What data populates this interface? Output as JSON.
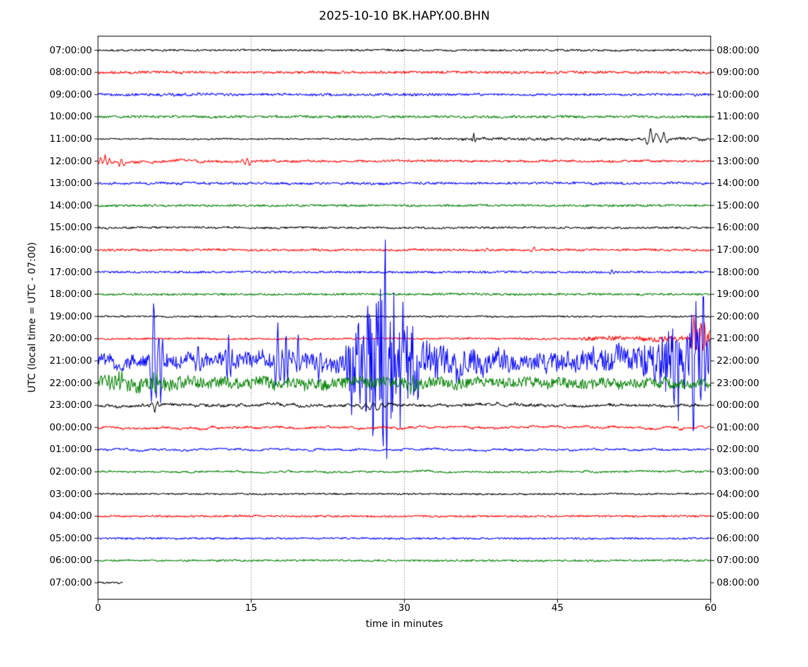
{
  "chart_data": {
    "type": "line",
    "subtype": "seismogram-dayplot",
    "title": "2025-10-10 BK.HAPY.00.BHN",
    "xlabel": "time in minutes",
    "ylabel": "UTC (local time = UTC - 07:00)",
    "x_range_minutes": [
      0,
      60
    ],
    "x_ticks": [
      0,
      15,
      30,
      45,
      60
    ],
    "gridline_minutes": [
      15,
      30,
      45
    ],
    "grid_style": "dotted-vertical",
    "trace_color_cycle": [
      "#000000",
      "#ff0000",
      "#0000ff",
      "#008000"
    ],
    "rows_note": "each row = one hour of data; left label = UTC start time, right label = UTC end time; hf/mf/lf are amplitude envelopes in px as [minute,amp] points or constants; spikes are transient events {t:minute, a:amp px, w:half-width min, c:cycles}",
    "rows": [
      {
        "utc_start": "07:00:00",
        "utc_end": "08:00:00",
        "color": "#000000",
        "hf": 1.3,
        "mf": 0.5,
        "lf": 0.4
      },
      {
        "utc_start": "08:00:00",
        "utc_end": "09:00:00",
        "color": "#ff0000",
        "hf": 1.8,
        "mf": 0.6,
        "lf": 0.5
      },
      {
        "utc_start": "09:00:00",
        "utc_end": "10:00:00",
        "color": "#0000ff",
        "hf": [
          [
            0,
            1.5
          ],
          [
            9,
            2.2
          ],
          [
            14,
            1.5
          ],
          [
            31,
            2.0
          ],
          [
            38,
            1.5
          ],
          [
            60,
            1.7
          ]
        ],
        "mf": 0.6,
        "lf": 0.5
      },
      {
        "utc_start": "10:00:00",
        "utc_end": "11:00:00",
        "color": "#008000",
        "hf": 1.7,
        "mf": 0.5,
        "lf": 0.4
      },
      {
        "utc_start": "11:00:00",
        "utc_end": "12:00:00",
        "color": "#000000",
        "hf": [
          [
            0,
            0.9
          ],
          [
            30,
            1.0
          ],
          [
            33,
            1.6
          ],
          [
            52,
            1.8
          ],
          [
            60,
            1.6
          ]
        ],
        "mf": [
          [
            0,
            0.3
          ],
          [
            35,
            0.5
          ],
          [
            37,
            1.2
          ],
          [
            45,
            1.3
          ],
          [
            52,
            1.5
          ],
          [
            53,
            5
          ],
          [
            54,
            6
          ],
          [
            56,
            2.5
          ],
          [
            60,
            1.5
          ]
        ],
        "lf": [
          [
            0,
            0.3
          ],
          [
            45,
            0.6
          ],
          [
            53,
            2
          ],
          [
            55,
            2
          ],
          [
            57,
            1
          ],
          [
            60,
            1
          ]
        ],
        "spikes": [
          {
            "t": 36.8,
            "a": 7,
            "w": 0.3,
            "c": 2
          },
          {
            "t": 54.1,
            "a": 12,
            "w": 0.9,
            "c": 3
          },
          {
            "t": 55.4,
            "a": 9,
            "w": 0.7,
            "c": 2
          }
        ]
      },
      {
        "utc_start": "12:00:00",
        "utc_end": "13:00:00",
        "color": "#ff0000",
        "hf": [
          [
            0,
            2.0
          ],
          [
            6,
            1.7
          ],
          [
            25,
            1.5
          ],
          [
            60,
            1.4
          ]
        ],
        "mf": [
          [
            0,
            5.5
          ],
          [
            1.5,
            3.5
          ],
          [
            4,
            2.5
          ],
          [
            15,
            2.2
          ],
          [
            21,
            1.2
          ],
          [
            60,
            0.9
          ]
        ],
        "lf": [
          [
            0,
            2
          ],
          [
            10,
            1.2
          ],
          [
            60,
            0.8
          ]
        ],
        "spikes": [
          {
            "t": 0.7,
            "a": 7,
            "w": 0.9,
            "c": 4
          },
          {
            "t": 2.3,
            "a": 5,
            "w": 0.7,
            "c": 3
          },
          {
            "t": 14.6,
            "a": 4.5,
            "w": 0.7,
            "c": 3
          }
        ]
      },
      {
        "utc_start": "13:00:00",
        "utc_end": "14:00:00",
        "color": "#0000ff",
        "hf": 1.6,
        "mf": [
          [
            0,
            1
          ],
          [
            10,
            2.2
          ],
          [
            13,
            1
          ],
          [
            60,
            0.9
          ]
        ],
        "lf": 0.7
      },
      {
        "utc_start": "14:00:00",
        "utc_end": "15:00:00",
        "color": "#008000",
        "hf": 1.5,
        "mf": 0.5,
        "lf": 0.4
      },
      {
        "utc_start": "15:00:00",
        "utc_end": "16:00:00",
        "color": "#000000",
        "hf": 1.3,
        "mf": 0.7,
        "lf": 0.6
      },
      {
        "utc_start": "16:00:00",
        "utc_end": "17:00:00",
        "color": "#ff0000",
        "hf": 1.4,
        "mf": 0.6,
        "lf": 0.5,
        "spikes": [
          {
            "t": 38.1,
            "a": 3.5,
            "w": 0.6,
            "c": 2
          },
          {
            "t": 42.7,
            "a": 4.5,
            "w": 0.5,
            "c": 2
          }
        ]
      },
      {
        "utc_start": "17:00:00",
        "utc_end": "18:00:00",
        "color": "#0000ff",
        "hf": 1.5,
        "mf": 0.5,
        "lf": 0.4,
        "spikes": [
          {
            "t": 50.3,
            "a": 3,
            "w": 0.4,
            "c": 2
          }
        ]
      },
      {
        "utc_start": "18:00:00",
        "utc_end": "19:00:00",
        "color": "#008000",
        "hf": 1.5,
        "mf": 0.5,
        "lf": 0.4
      },
      {
        "utc_start": "19:00:00",
        "utc_end": "20:00:00",
        "color": "#000000",
        "hf": 1.1,
        "mf": 0.4,
        "lf": 0.3
      },
      {
        "utc_start": "20:00:00",
        "utc_end": "21:00:00",
        "color": "#ff0000",
        "hf": [
          [
            0,
            1.2
          ],
          [
            47,
            1.3
          ],
          [
            48,
            3.2
          ],
          [
            58,
            3.8
          ],
          [
            60,
            3.8
          ]
        ],
        "mf": [
          [
            0,
            0.5
          ],
          [
            47,
            0.8
          ],
          [
            48,
            2.5
          ],
          [
            58,
            3
          ],
          [
            60,
            3.5
          ]
        ],
        "lf": [
          [
            0,
            0.4
          ],
          [
            48,
            0.8
          ],
          [
            60,
            1.5
          ]
        ],
        "spikes": [
          {
            "t": 58.35,
            "a": 30,
            "w": 0.45,
            "c": 2
          },
          {
            "t": 58.85,
            "a": -24,
            "w": 0.4,
            "c": 2
          },
          {
            "t": 59.4,
            "a": 22,
            "w": 0.5,
            "c": 3
          },
          {
            "t": 59.9,
            "a": 16,
            "w": 0.3,
            "c": 2
          }
        ]
      },
      {
        "utc_start": "21:00:00",
        "utc_end": "22:00:00",
        "color": "#0000ff",
        "hf": [
          [
            0,
            9
          ],
          [
            5,
            10
          ],
          [
            20,
            11
          ],
          [
            24,
            12
          ],
          [
            24.6,
            45
          ],
          [
            25.2,
            85
          ],
          [
            26,
            95
          ],
          [
            29,
            92
          ],
          [
            30.5,
            60
          ],
          [
            32,
            35
          ],
          [
            34,
            22
          ],
          [
            38,
            16
          ],
          [
            44,
            14
          ],
          [
            48,
            15
          ],
          [
            52,
            18
          ],
          [
            54,
            28
          ],
          [
            56,
            45
          ],
          [
            57.5,
            52
          ],
          [
            60,
            50
          ]
        ],
        "mf": [
          [
            0,
            6
          ],
          [
            24,
            8
          ],
          [
            25,
            25
          ],
          [
            32,
            18
          ],
          [
            40,
            10
          ],
          [
            60,
            12
          ]
        ],
        "lf": [
          [
            0,
            5
          ],
          [
            24,
            6
          ],
          [
            26,
            10
          ],
          [
            32,
            8
          ],
          [
            60,
            6
          ]
        ],
        "spikes": [
          {
            "t": 5.45,
            "a": 95,
            "w": 0.5,
            "c": 2
          },
          {
            "t": 6.15,
            "a": -62,
            "w": 0.4,
            "c": 2
          },
          {
            "t": 9.8,
            "a": 28,
            "w": 0.5,
            "c": 2
          },
          {
            "t": 12.8,
            "a": 36,
            "w": 0.5,
            "c": 3
          },
          {
            "t": 17.6,
            "a": 50,
            "w": 0.5,
            "c": 2
          },
          {
            "t": 18.4,
            "a": 40,
            "w": 0.5,
            "c": 3
          },
          {
            "t": 19.6,
            "a": 30,
            "w": 0.4,
            "c": 2
          },
          {
            "t": 21.8,
            "a": 26,
            "w": 0.4,
            "c": 2
          },
          {
            "t": 28.1,
            "a": 105,
            "w": 0.4,
            "c": 2
          },
          {
            "t": 29.6,
            "a": -112,
            "w": 0.45,
            "c": 2
          },
          {
            "t": 56.6,
            "a": 72,
            "w": 0.6,
            "c": 3
          },
          {
            "t": 58.3,
            "a": -82,
            "w": 0.5,
            "c": 2
          },
          {
            "t": 59.3,
            "a": 76,
            "w": 0.5,
            "c": 2
          }
        ]
      },
      {
        "utc_start": "22:00:00",
        "utc_end": "23:00:00",
        "color": "#008000",
        "hf": [
          [
            0,
            8
          ],
          [
            3,
            11
          ],
          [
            15,
            8
          ],
          [
            30,
            8
          ],
          [
            45,
            7
          ],
          [
            60,
            7
          ]
        ],
        "mf": [
          [
            0,
            4
          ],
          [
            24,
            5
          ],
          [
            28,
            6
          ],
          [
            33,
            4
          ],
          [
            60,
            3.5
          ]
        ],
        "lf": [
          [
            0,
            3
          ],
          [
            25,
            4.5
          ],
          [
            35,
            3
          ],
          [
            60,
            3
          ]
        ],
        "spikes": [
          {
            "t": 1.2,
            "a": -14,
            "w": 0.5,
            "c": 3
          },
          {
            "t": 2.2,
            "a": -16,
            "w": 0.5,
            "c": 3
          },
          {
            "t": 5.6,
            "a": -18,
            "w": 0.4,
            "c": 2
          },
          {
            "t": 30.8,
            "a": 14,
            "w": 0.6,
            "c": 3
          }
        ]
      },
      {
        "utc_start": "23:00:00",
        "utc_end": "00:00:00",
        "color": "#000000",
        "hf": 1.8,
        "mf": [
          [
            0,
            2.2
          ],
          [
            25,
            3
          ],
          [
            35,
            3
          ],
          [
            60,
            2.2
          ]
        ],
        "lf": 2,
        "spikes": [
          {
            "t": 5.55,
            "a": -9,
            "w": 0.6,
            "c": 2
          },
          {
            "t": 27,
            "a": 5,
            "w": 2,
            "c": 5
          }
        ]
      },
      {
        "utc_start": "00:00:00",
        "utc_end": "01:00:00",
        "color": "#ff0000",
        "hf": 1.4,
        "mf": 2.2,
        "lf": 1.6
      },
      {
        "utc_start": "01:00:00",
        "utc_end": "02:00:00",
        "color": "#0000ff",
        "hf": 1.2,
        "mf": 1.8,
        "lf": 1.2
      },
      {
        "utc_start": "02:00:00",
        "utc_end": "03:00:00",
        "color": "#008000",
        "hf": 1.2,
        "mf": 1.4,
        "lf": 0.9
      },
      {
        "utc_start": "03:00:00",
        "utc_end": "04:00:00",
        "color": "#000000",
        "hf": 1.1,
        "mf": 0.5,
        "lf": 0.4
      },
      {
        "utc_start": "04:00:00",
        "utc_end": "05:00:00",
        "color": "#ff0000",
        "hf": 1.3,
        "mf": 0.4,
        "lf": 0.4
      },
      {
        "utc_start": "05:00:00",
        "utc_end": "06:00:00",
        "color": "#0000ff",
        "hf": 1.3,
        "mf": 0.4,
        "lf": 0.4
      },
      {
        "utc_start": "06:00:00",
        "utc_end": "07:00:00",
        "color": "#008000",
        "hf": 1.3,
        "mf": 0.4,
        "lf": 0.4
      },
      {
        "utc_start": "07:00:00",
        "utc_end": "08:00:00",
        "color": "#000000",
        "hf": 1.2,
        "mf": 0.4,
        "lf": 0.3,
        "end_minute": 2.5
      }
    ]
  }
}
